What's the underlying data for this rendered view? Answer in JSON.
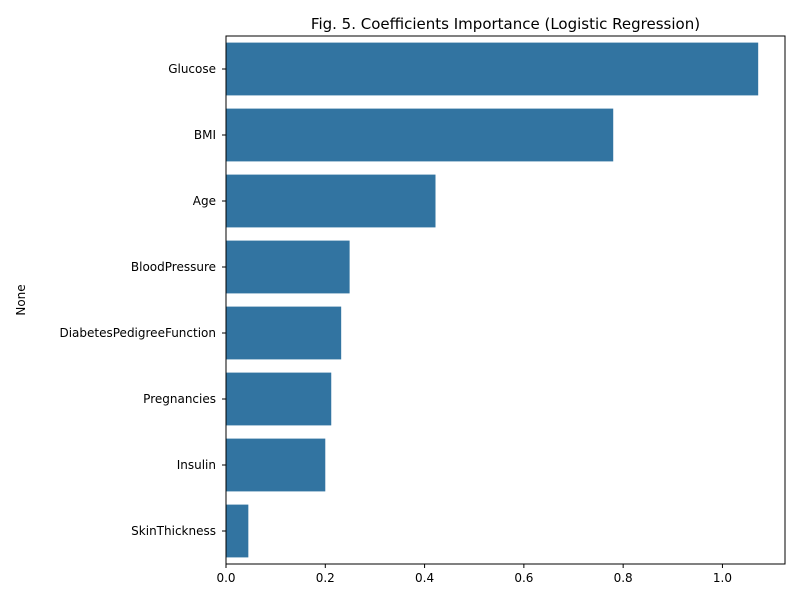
{
  "chart_data": {
    "type": "bar",
    "orientation": "horizontal",
    "title": "Fig. 5. Coefficients Importance (Logistic Regression)",
    "xlabel": "",
    "ylabel": "None",
    "categories": [
      "Glucose",
      "BMI",
      "Age",
      "BloodPressure",
      "DiabetesPedigreeFunction",
      "Pregnancies",
      "Insulin",
      "SkinThickness"
    ],
    "values": [
      1.072,
      0.78,
      0.422,
      0.249,
      0.232,
      0.212,
      0.2,
      0.045
    ],
    "xlim": [
      0,
      1.126
    ],
    "xticks": [
      0.0,
      0.2,
      0.4,
      0.6,
      0.8,
      1.0
    ],
    "xtick_labels": [
      "0.0",
      "0.2",
      "0.4",
      "0.6",
      "0.8",
      "1.0"
    ],
    "bar_color": "#3274a1",
    "grid": false,
    "legend": "none"
  }
}
